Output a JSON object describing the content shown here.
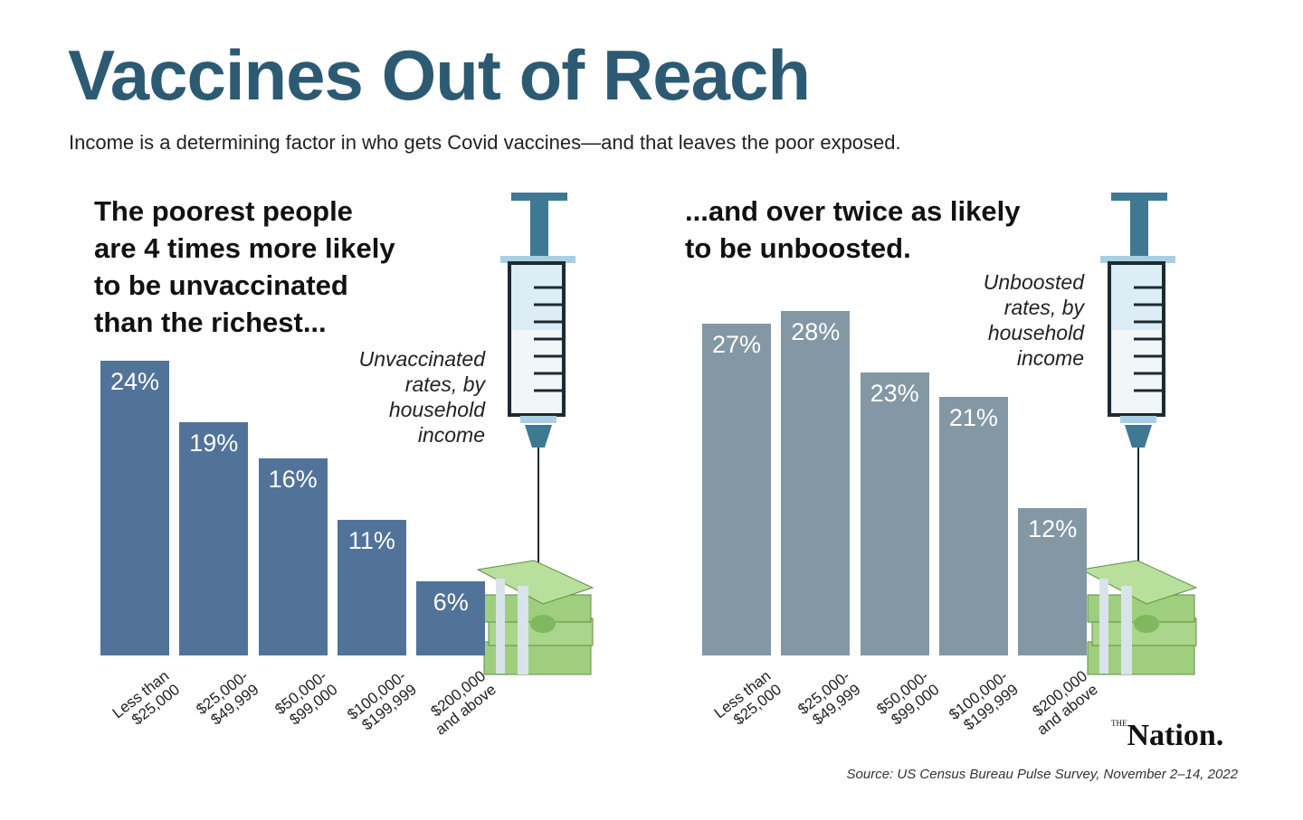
{
  "title": "Vaccines Out of Reach",
  "subtitle": "Income is a determining factor in who gets Covid vaccines—and that leaves the poor exposed.",
  "chart_data": [
    {
      "type": "bar",
      "heading": "The poorest people\nare 4 times more likely\nto be unvaccinated\nthan the richest...",
      "annotation": "Unvaccinated\nrates, by\nhousehold\nincome",
      "categories": [
        "Less than\n$25,000",
        "$25,000-\n$49,999",
        "$50,000-\n$99,000",
        "$100,000-\n$199,999",
        "$200,000\nand above"
      ],
      "values": [
        24,
        19,
        16,
        11,
        6
      ],
      "value_labels": [
        "24%",
        "19%",
        "16%",
        "11%",
        "6%"
      ],
      "color": "#527399"
    },
    {
      "type": "bar",
      "heading": "...and over twice as likely\nto be unboosted.",
      "annotation": "Unboosted\nrates, by\nhousehold\nincome",
      "categories": [
        "Less than\n$25,000",
        "$25,000-\n$49,999",
        "$50,000-\n$99,000",
        "$100,000-\n$199,999",
        "$200,000\nand above"
      ],
      "values": [
        27,
        28,
        23,
        21,
        12
      ],
      "value_labels": [
        "27%",
        "28%",
        "23%",
        "21%",
        "12%"
      ],
      "color": "#8497a5"
    }
  ],
  "source": "Source: US Census Bureau Pulse Survey, November 2–14, 2022",
  "logo": {
    "small": "THE",
    "main": "Nation."
  }
}
